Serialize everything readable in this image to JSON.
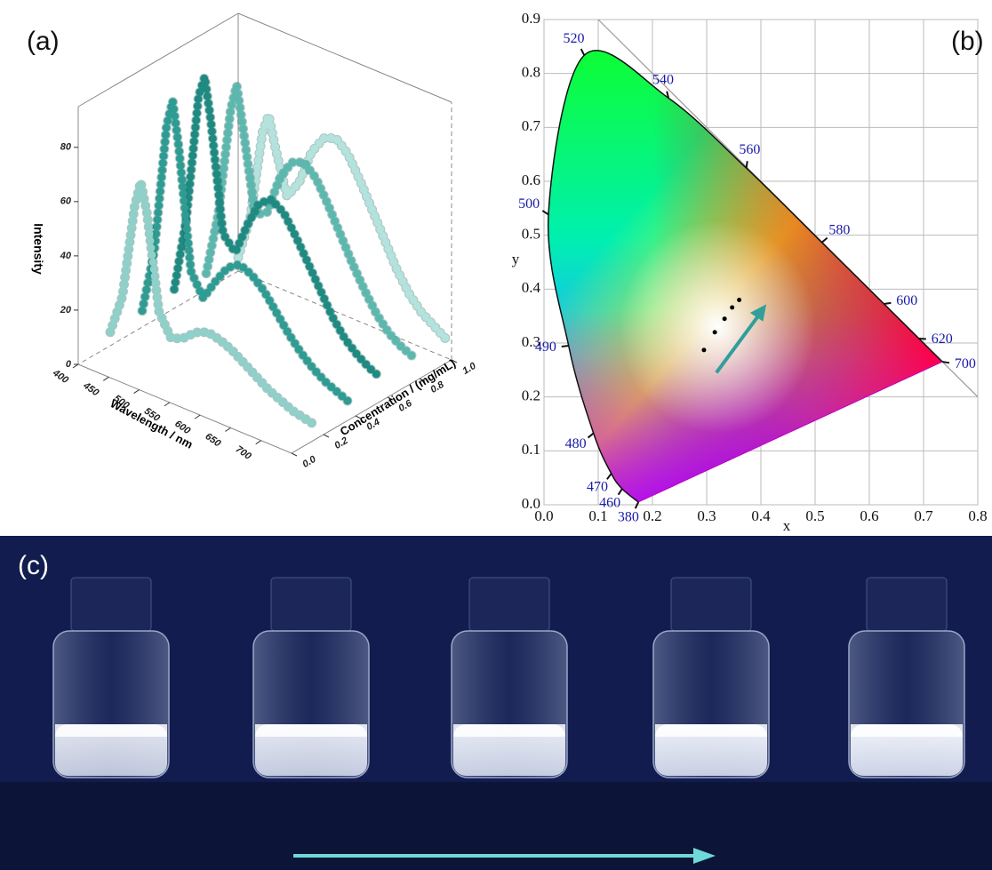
{
  "chart_data": [
    {
      "type": "line3d",
      "panel_label": "(a)",
      "zlabel": "Intensity",
      "xlabel": "Wavelength / nm",
      "ylabel": "Concentration / (mg/mL)",
      "xlim": [
        400,
        750
      ],
      "xticks": [
        400,
        450,
        500,
        550,
        600,
        650,
        700
      ],
      "ylim": [
        0,
        1
      ],
      "yticks": [
        {
          "value": 0,
          "label": "0.0"
        },
        {
          "value": 0.2,
          "label": "0.2"
        },
        {
          "value": 0.4,
          "label": "0.4"
        },
        {
          "value": 0.6,
          "label": "0.6"
        },
        {
          "value": 0.8,
          "label": "0.8"
        },
        {
          "value": 1,
          "label": "1.0"
        }
      ],
      "zlim": [
        0,
        95
      ],
      "zticks": [
        0,
        20,
        40,
        60,
        80
      ],
      "x": [
        400,
        420,
        440,
        450,
        460,
        480,
        500,
        520,
        540,
        560,
        580,
        600,
        620,
        640,
        660,
        680,
        700,
        720,
        740
      ],
      "series": [
        {
          "concentration": 0.2,
          "color": "#8fd0c8",
          "values": [
            5,
            20,
            55,
            65,
            55,
            20,
            12,
            14,
            18,
            20,
            19,
            17,
            14,
            11,
            8,
            6,
            4,
            3,
            2
          ]
        },
        {
          "concentration": 0.4,
          "color": "#2e9c93",
          "values": [
            6,
            30,
            78,
            88,
            72,
            28,
            20,
            28,
            35,
            38,
            36,
            32,
            26,
            20,
            15,
            11,
            8,
            6,
            4
          ]
        },
        {
          "concentration": 0.6,
          "color": "#1f8a82",
          "values": [
            7,
            35,
            82,
            90,
            75,
            35,
            30,
            42,
            52,
            55,
            52,
            45,
            37,
            29,
            21,
            15,
            11,
            8,
            6
          ]
        },
        {
          "concentration": 0.8,
          "color": "#5cb8ae",
          "values": [
            6,
            30,
            70,
            80,
            66,
            35,
            38,
            52,
            60,
            62,
            58,
            50,
            41,
            32,
            24,
            17,
            12,
            9,
            7
          ]
        },
        {
          "concentration": 1.0,
          "color": "#b4e2dc",
          "values": [
            5,
            22,
            55,
            62,
            52,
            35,
            42,
            55,
            62,
            64,
            60,
            52,
            43,
            34,
            25,
            18,
            13,
            10,
            7
          ]
        }
      ]
    },
    {
      "type": "cie",
      "panel_label": "(b)",
      "xlabel": "x",
      "ylabel": "y",
      "grid": true,
      "xlim": [
        0,
        0.8
      ],
      "xticks": [
        {
          "value": 0,
          "label": "0.0"
        },
        {
          "value": 0.1,
          "label": "0.1"
        },
        {
          "value": 0.2,
          "label": "0.2"
        },
        {
          "value": 0.3,
          "label": "0.3"
        },
        {
          "value": 0.4,
          "label": "0.4"
        },
        {
          "value": 0.5,
          "label": "0.5"
        },
        {
          "value": 0.6,
          "label": "0.6"
        },
        {
          "value": 0.7,
          "label": "0.7"
        },
        {
          "value": 0.8,
          "label": "0.8"
        }
      ],
      "ylim": [
        0,
        0.9
      ],
      "yticks": [
        {
          "value": 0,
          "label": "0.0"
        },
        {
          "value": 0.1,
          "label": "0.1"
        },
        {
          "value": 0.2,
          "label": "0.2"
        },
        {
          "value": 0.3,
          "label": "0.3"
        },
        {
          "value": 0.4,
          "label": "0.4"
        },
        {
          "value": 0.5,
          "label": "0.5"
        },
        {
          "value": 0.6,
          "label": "0.6"
        },
        {
          "value": 0.7,
          "label": "0.7"
        },
        {
          "value": 0.8,
          "label": "0.8"
        },
        {
          "value": 0.9,
          "label": "0.9"
        }
      ],
      "locus": [
        {
          "wavelength": 380,
          "x": 0.1741,
          "y": 0.005
        },
        {
          "wavelength": 460,
          "x": 0.144,
          "y": 0.0297
        },
        {
          "wavelength": 470,
          "x": 0.1241,
          "y": 0.0578
        },
        {
          "wavelength": 480,
          "x": 0.0913,
          "y": 0.1327
        },
        {
          "wavelength": 490,
          "x": 0.0454,
          "y": 0.295
        },
        {
          "wavelength": 500,
          "x": 0.0082,
          "y": 0.5384
        },
        {
          "wavelength": 520,
          "x": 0.0743,
          "y": 0.8338
        },
        {
          "wavelength": 540,
          "x": 0.2296,
          "y": 0.7543
        },
        {
          "wavelength": 560,
          "x": 0.3731,
          "y": 0.6245
        },
        {
          "wavelength": 580,
          "x": 0.5125,
          "y": 0.4866
        },
        {
          "wavelength": 600,
          "x": 0.627,
          "y": 0.3725
        },
        {
          "wavelength": 620,
          "x": 0.6915,
          "y": 0.3083
        },
        {
          "wavelength": 700,
          "x": 0.7347,
          "y": 0.2653
        }
      ],
      "x": [
        0.295,
        0.315,
        0.333,
        0.347,
        0.36
      ],
      "y": [
        0.287,
        0.32,
        0.345,
        0.366,
        0.38
      ],
      "color": "#000000"
    }
  ],
  "photo": {
    "panel_label": "(c)"
  }
}
